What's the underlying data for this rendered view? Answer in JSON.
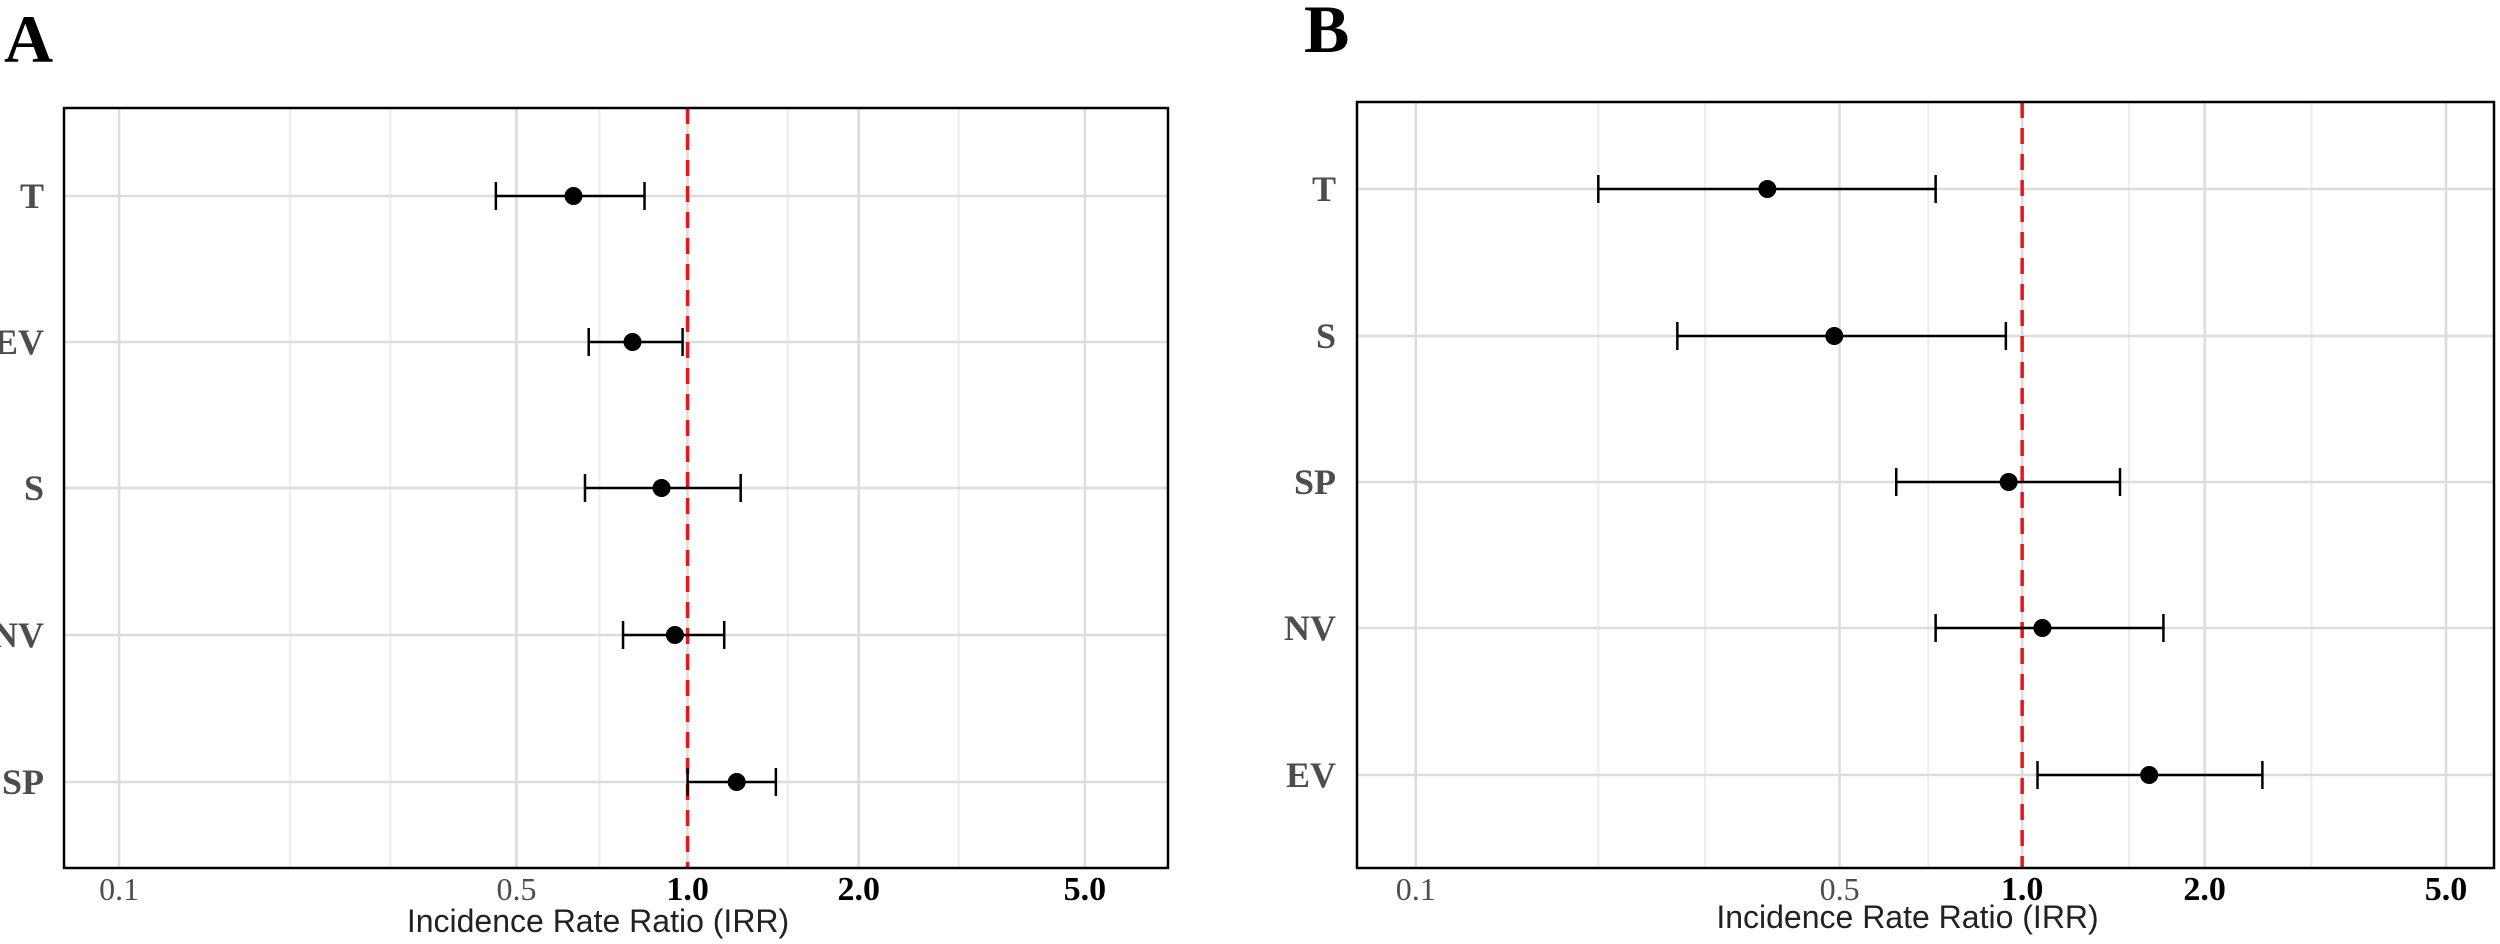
{
  "chart_data": [
    {
      "type": "forest",
      "panel_label": "A",
      "xlabel": "Incidence Rate Ratio (IRR)",
      "xscale": "log",
      "xlim": [
        0.08,
        7.0
      ],
      "xticks": [
        0.1,
        0.5,
        1.0,
        2.0,
        5.0
      ],
      "xtick_labels": [
        "0.1",
        "0.5",
        "1.0",
        "2.0",
        "5.0"
      ],
      "reference_line": 1.0,
      "reference_color": "#e8161b",
      "grid": true,
      "categories": [
        "T",
        "EV",
        "S",
        "NV",
        "SP"
      ],
      "estimates": [
        0.63,
        0.8,
        0.9,
        0.95,
        1.22
      ],
      "ci_lower": [
        0.46,
        0.67,
        0.66,
        0.77,
        1.0
      ],
      "ci_upper": [
        0.84,
        0.98,
        1.24,
        1.16,
        1.43
      ]
    },
    {
      "type": "forest",
      "panel_label": "B",
      "xlabel": "Incidence Rate Ratio (IRR)",
      "xscale": "log",
      "xlim": [
        0.08,
        6.0
      ],
      "xticks": [
        0.1,
        0.5,
        1.0,
        2.0,
        5.0
      ],
      "xtick_labels": [
        "0.1",
        "0.5",
        "1.0",
        "2.0",
        "5.0"
      ],
      "reference_line": 1.0,
      "reference_color": "#e8161b",
      "grid": true,
      "categories": [
        "T",
        "S",
        "SP",
        "NV",
        "EV"
      ],
      "estimates": [
        0.38,
        0.49,
        0.95,
        1.08,
        1.62
      ],
      "ci_lower": [
        0.2,
        0.27,
        0.62,
        0.72,
        1.06
      ],
      "ci_upper": [
        0.72,
        0.94,
        1.45,
        1.71,
        2.49
      ]
    }
  ]
}
